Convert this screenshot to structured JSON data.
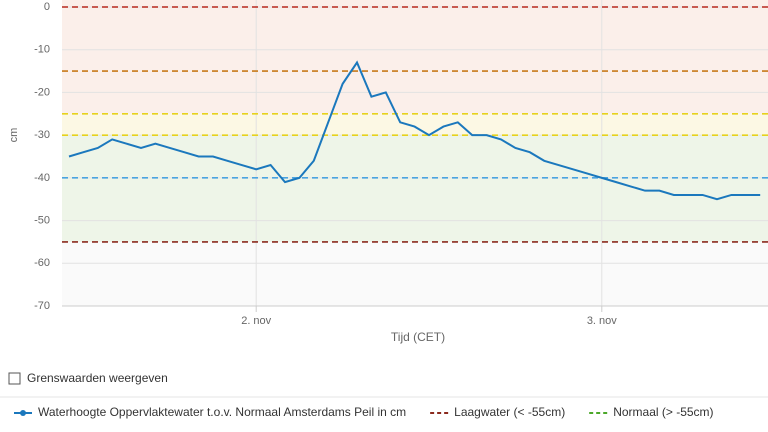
{
  "chart_data": {
    "type": "line",
    "y_label": "cm",
    "x_label": "Tijd (CET)",
    "categories": [
      null,
      null,
      null,
      null,
      null,
      null,
      null,
      null,
      null,
      null,
      null,
      null,
      null,
      "2. nov",
      null,
      null,
      null,
      null,
      null,
      null,
      null,
      null,
      null,
      null,
      null,
      null,
      null,
      null,
      null,
      null,
      null,
      null,
      null,
      null,
      null,
      null,
      null,
      "3. nov",
      null,
      null,
      null,
      null,
      null,
      null,
      null,
      null,
      null,
      null,
      null
    ],
    "series": [
      {
        "name": "Waterhoogte Oppervlaktewater t.o.v. Normaal Amsterdams Peil in cm",
        "color": "#1b78bd",
        "values": [
          -35,
          -34,
          -33,
          -31,
          -32,
          -33,
          -32,
          -33,
          -34,
          -35,
          -35,
          -36,
          -37,
          -38,
          -37,
          -41,
          -40,
          -36,
          -27,
          -18,
          -13,
          -21,
          -20,
          -27,
          -28,
          -30,
          -28,
          -27,
          -30,
          -30,
          -31,
          -33,
          -34,
          -36,
          -37,
          -38,
          -39,
          -40,
          -41,
          -42,
          -43,
          -43,
          -44,
          -44,
          -44,
          -45,
          -44,
          -44,
          -44
        ]
      }
    ],
    "ylim": [
      -70,
      0
    ],
    "yticks": [
      -70,
      -60,
      -50,
      -40,
      -30,
      -20,
      -10,
      0
    ],
    "grid": true,
    "thresholds": [
      {
        "value": 0,
        "color": "#b8281e"
      },
      {
        "value": -15,
        "color": "#c87a1a"
      },
      {
        "value": -25,
        "color": "#e6d21c"
      },
      {
        "value": -30,
        "color": "#e6d21c"
      },
      {
        "value": -40,
        "color": "#4aa3e0"
      },
      {
        "value": -55,
        "color": "#8b2a1e"
      }
    ],
    "bands": [
      {
        "from": 0,
        "to": -25,
        "color": "#fbefea"
      },
      {
        "from": -25,
        "to": -30,
        "color": "#fcf8e4"
      },
      {
        "from": -30,
        "to": -55,
        "color": "#eef5e8"
      }
    ],
    "checkbox_label": "Grenswaarden weergeven",
    "legend_extra": [
      {
        "name": "Laagwater (< -55cm)",
        "color": "#8b2a1e"
      },
      {
        "name": "Normaal (> -55cm)",
        "color": "#4ca82a"
      }
    ]
  }
}
